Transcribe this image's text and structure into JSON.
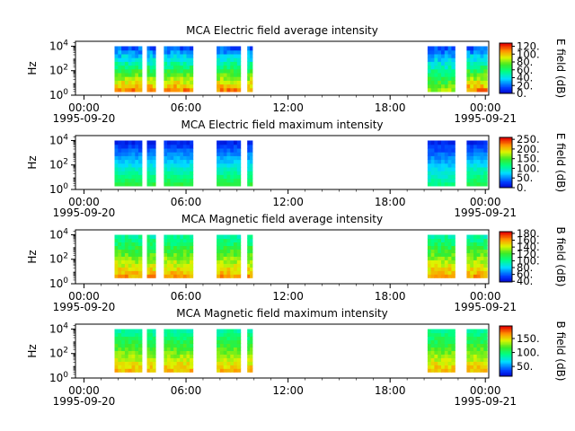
{
  "chart_data": [
    {
      "type": "heatmap",
      "title": "MCA  Electric field average intensity",
      "ylabel": "Hz",
      "yscale": "log",
      "y_ticks": [
        "10^0",
        "10^2",
        "10^4"
      ],
      "x_ticks": [
        "00:00",
        "06:00",
        "12:00",
        "18:00",
        "00:00"
      ],
      "x_date_start": "1995-09-20",
      "x_date_end": "1995-09-21",
      "x_range_hours": [
        -0.5,
        23.8
      ],
      "colorbar": {
        "label": "E field (dB)",
        "ticks": [
          "0.",
          "20.",
          "40.",
          "60.",
          "80.",
          "100.",
          "120."
        ],
        "range": [
          0,
          128
        ]
      },
      "data_intervals_hours": [
        [
          1.8,
          3.4
        ],
        [
          3.7,
          4.2
        ],
        [
          4.7,
          6.4
        ],
        [
          7.8,
          9.2
        ],
        [
          9.6,
          9.9
        ],
        [
          20.2,
          21.8
        ],
        [
          22.5,
          23.7
        ]
      ],
      "freq_range_decades": [
        0.3,
        4.0
      ],
      "level_range_dB": [
        20,
        110
      ],
      "colormap": "rainbow"
    },
    {
      "type": "heatmap",
      "title": "MCA  Electric field maximum intensity",
      "ylabel": "Hz",
      "yscale": "log",
      "y_ticks": [
        "10^0",
        "10^2",
        "10^4"
      ],
      "x_ticks": [
        "00:00",
        "06:00",
        "12:00",
        "18:00",
        "00:00"
      ],
      "x_date_start": "1995-09-20",
      "x_date_end": "1995-09-21",
      "x_range_hours": [
        -0.5,
        23.8
      ],
      "colorbar": {
        "label": "E field (dB)",
        "ticks": [
          "0.",
          "50.",
          "100.",
          "150.",
          "200.",
          "250."
        ],
        "range": [
          0,
          260
        ]
      },
      "data_intervals_hours": [
        [
          1.8,
          3.4
        ],
        [
          3.7,
          4.2
        ],
        [
          4.7,
          6.4
        ],
        [
          7.8,
          9.2
        ],
        [
          9.6,
          9.9
        ],
        [
          20.2,
          21.8
        ],
        [
          22.5,
          23.7
        ]
      ],
      "freq_range_decades": [
        0.3,
        4.0
      ],
      "level_range_dB": [
        20,
        140
      ],
      "colormap": "rainbow"
    },
    {
      "type": "heatmap",
      "title": "MCA  Magnetic field average intensity",
      "ylabel": "Hz",
      "yscale": "log",
      "y_ticks": [
        "10^0",
        "10^2",
        "10^4"
      ],
      "x_ticks": [
        "00:00",
        "06:00",
        "12:00",
        "18:00",
        "00:00"
      ],
      "x_date_start": "1995-09-20",
      "x_date_end": "1995-09-21",
      "x_range_hours": [
        -0.5,
        23.8
      ],
      "colorbar": {
        "label": "B field (dB)",
        "ticks": [
          "40.",
          "60.",
          "80.",
          "100.",
          "120.",
          "140.",
          "160.",
          "180."
        ],
        "range": [
          38,
          185
        ]
      },
      "data_intervals_hours": [
        [
          1.8,
          3.4
        ],
        [
          3.7,
          4.2
        ],
        [
          4.7,
          6.4
        ],
        [
          7.8,
          9.2
        ],
        [
          9.6,
          9.9
        ],
        [
          20.2,
          21.8
        ],
        [
          22.5,
          23.7
        ]
      ],
      "freq_range_decades": [
        0.5,
        4.0
      ],
      "level_range_dB": [
        100,
        160
      ],
      "colormap": "rainbow"
    },
    {
      "type": "heatmap",
      "title": "MCA  Magnetic field maximum intensity",
      "ylabel": "Hz",
      "yscale": "log",
      "y_ticks": [
        "10^0",
        "10^2",
        "10^4"
      ],
      "x_ticks": [
        "00:00",
        "06:00",
        "12:00",
        "18:00",
        "00:00"
      ],
      "x_date_start": "1995-09-20",
      "x_date_end": "1995-09-21",
      "x_range_hours": [
        -0.5,
        23.8
      ],
      "colorbar": {
        "label": "B field (dB)",
        "ticks": [
          "50.",
          "100.",
          "150."
        ],
        "range": [
          15,
          195
        ]
      },
      "data_intervals_hours": [
        [
          1.8,
          3.4
        ],
        [
          3.7,
          4.2
        ],
        [
          4.7,
          6.4
        ],
        [
          7.8,
          9.2
        ],
        [
          9.6,
          9.9
        ],
        [
          20.2,
          21.8
        ],
        [
          22.5,
          23.7
        ]
      ],
      "freq_range_decades": [
        0.5,
        4.0
      ],
      "level_range_dB": [
        90,
        160
      ],
      "colormap": "rainbow"
    }
  ]
}
